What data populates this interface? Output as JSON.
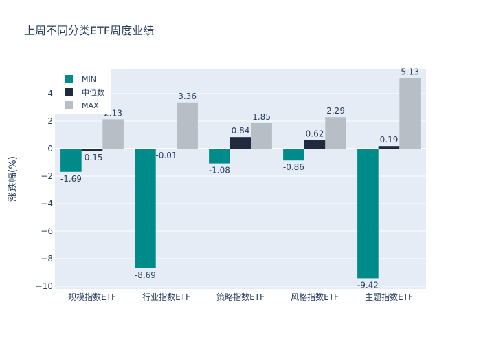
{
  "chart_data": {
    "type": "bar",
    "title": "上周不同分类ETF周度业绩",
    "xlabel": "",
    "ylabel": "涨跌幅(%)",
    "categories": [
      "规模指数ETF",
      "行业指数ETF",
      "策略指数ETF",
      "风格指数ETF",
      "主题指数ETF"
    ],
    "series": [
      {
        "name": "MIN",
        "color": "#008b8b",
        "values": [
          -1.69,
          -8.69,
          -1.08,
          -0.86,
          -9.42
        ]
      },
      {
        "name": "中位数",
        "color": "#1f2a3c",
        "values": [
          -0.15,
          -0.01,
          0.84,
          0.62,
          0.19
        ]
      },
      {
        "name": "MAX",
        "color": "#b8bec6",
        "values": [
          2.13,
          3.36,
          1.85,
          2.29,
          5.13
        ]
      }
    ],
    "value_labels": [
      [
        "-1.69",
        "-8.69",
        "-1.08",
        "-0.86",
        "-9.42"
      ],
      [
        "-0.15",
        "-0.01",
        "0.84",
        "0.62",
        "0.19"
      ],
      [
        "2.13",
        "3.36",
        "1.85",
        "2.29",
        "5.13"
      ]
    ],
    "ylim": [
      -10.2,
      5.8
    ],
    "yticks": [
      -10,
      -8,
      -6,
      -4,
      -2,
      0,
      2,
      4
    ],
    "ytick_labels": [
      "−10",
      "−8",
      "−6",
      "−4",
      "−2",
      "0",
      "2",
      "4"
    ],
    "grid": true,
    "legend_position": "top-left",
    "colors": {
      "plot_bg": "#e5ecf6",
      "grid": "#ffffff",
      "text": "#2a3f5f"
    }
  }
}
